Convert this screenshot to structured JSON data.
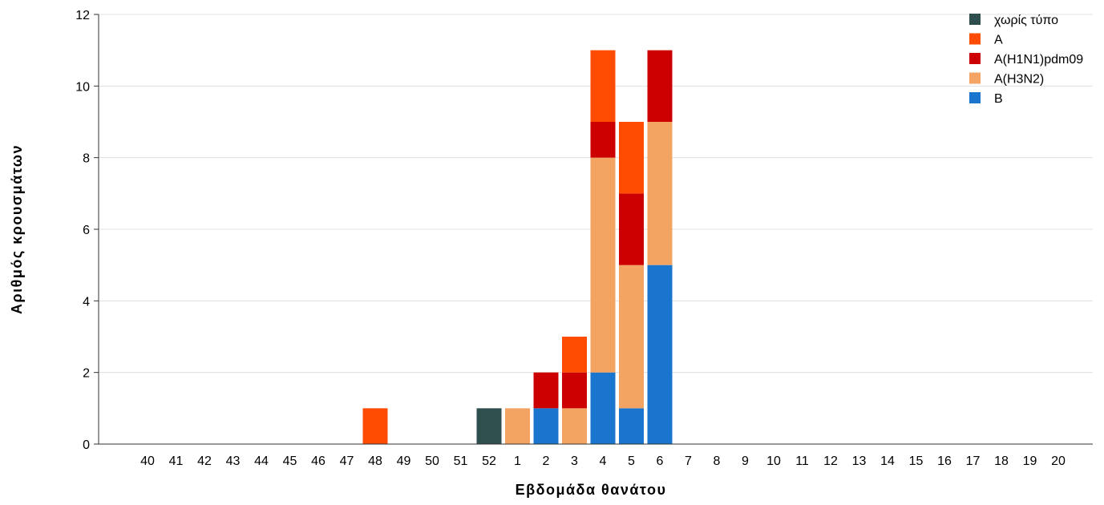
{
  "chart_data": {
    "type": "bar",
    "stacked": true,
    "title": "",
    "xlabel": "Εβδομάδα θανάτου",
    "ylabel": "Αριθμός κρουσμάτων",
    "ylim": [
      0,
      12
    ],
    "yticks": [
      0,
      2,
      4,
      6,
      8,
      10,
      12
    ],
    "grid": true,
    "legend_position": "top-right",
    "categories": [
      "40",
      "41",
      "42",
      "43",
      "44",
      "45",
      "46",
      "47",
      "48",
      "49",
      "50",
      "51",
      "52",
      "1",
      "2",
      "3",
      "4",
      "5",
      "6",
      "7",
      "8",
      "9",
      "10",
      "11",
      "12",
      "13",
      "14",
      "15",
      "16",
      "17",
      "18",
      "19",
      "20"
    ],
    "series": [
      {
        "name": "B",
        "color": "#1a75cf",
        "values": [
          0,
          0,
          0,
          0,
          0,
          0,
          0,
          0,
          0,
          0,
          0,
          0,
          0,
          0,
          1,
          0,
          2,
          1,
          5,
          0,
          0,
          0,
          0,
          0,
          0,
          0,
          0,
          0,
          0,
          0,
          0,
          0,
          0
        ]
      },
      {
        "name": "A(H3N2)",
        "color": "#f3a462",
        "values": [
          0,
          0,
          0,
          0,
          0,
          0,
          0,
          0,
          0,
          0,
          0,
          0,
          0,
          1,
          0,
          1,
          6,
          4,
          4,
          0,
          0,
          0,
          0,
          0,
          0,
          0,
          0,
          0,
          0,
          0,
          0,
          0,
          0
        ]
      },
      {
        "name": "A(H1N1)pdm09",
        "color": "#cc0000",
        "values": [
          0,
          0,
          0,
          0,
          0,
          0,
          0,
          0,
          0,
          0,
          0,
          0,
          0,
          0,
          1,
          1,
          1,
          2,
          2,
          0,
          0,
          0,
          0,
          0,
          0,
          0,
          0,
          0,
          0,
          0,
          0,
          0,
          0
        ]
      },
      {
        "name": "A",
        "color": "#ff4c00",
        "values": [
          0,
          0,
          0,
          0,
          0,
          0,
          0,
          0,
          1,
          0,
          0,
          0,
          0,
          0,
          0,
          1,
          2,
          2,
          0,
          0,
          0,
          0,
          0,
          0,
          0,
          0,
          0,
          0,
          0,
          0,
          0,
          0,
          0
        ]
      },
      {
        "name": "χωρίς τύπο",
        "color": "#2f4f4f",
        "values": [
          0,
          0,
          0,
          0,
          0,
          0,
          0,
          0,
          0,
          0,
          0,
          0,
          1,
          0,
          0,
          0,
          0,
          0,
          0,
          0,
          0,
          0,
          0,
          0,
          0,
          0,
          0,
          0,
          0,
          0,
          0,
          0,
          0
        ]
      }
    ],
    "legend_order": [
      "χωρίς τύπο",
      "A",
      "A(H1N1)pdm09",
      "A(H3N2)",
      "B"
    ]
  }
}
